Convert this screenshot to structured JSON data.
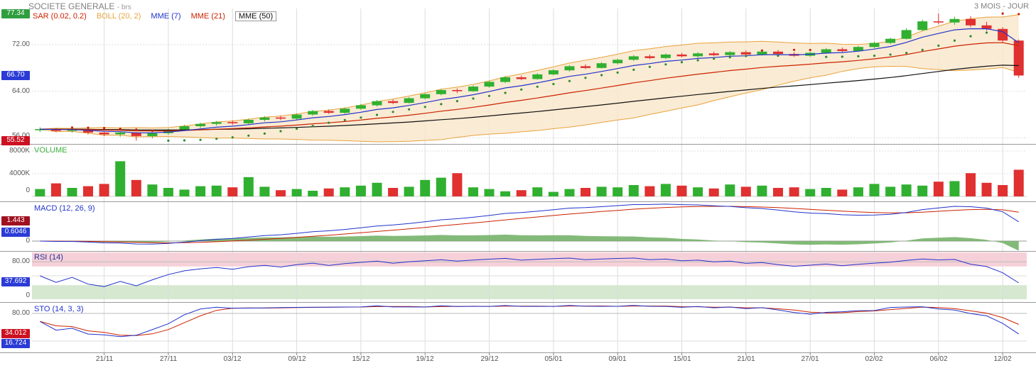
{
  "header": {
    "title": "SOCIETE GENERALE",
    "suffix": "- brs",
    "period": "3 MOIS - JOUR"
  },
  "legend": [
    {
      "label": "SAR (0.02, 0.2)",
      "color": "#cc2200"
    },
    {
      "label": "BOLL (20, 2)",
      "color": "#e8a33d"
    },
    {
      "label": "MME (7)",
      "color": "#2233cc"
    },
    {
      "label": "MME (21)",
      "color": "#cc2200"
    },
    {
      "label": "MME (50)",
      "color": "#111111",
      "boxed": true
    }
  ],
  "price_axis": {
    "high_badge": {
      "text": "77.34",
      "bg": "#2f9e3f"
    },
    "tick_72": "72.00",
    "last_badge": {
      "text": "66.70",
      "bg": "#2b3bd6"
    },
    "tick_64": "64.00",
    "tick_56": "56.00",
    "low_badge": {
      "text": "55.52",
      "bg": "#cc1122"
    }
  },
  "volume_panel": {
    "title": "VOLUME",
    "title_color": "#3eb43e",
    "tick_top": "8000K",
    "tick_mid": "4000K",
    "tick_zero": "0"
  },
  "macd_panel": {
    "title": "MACD (12, 26, 9)",
    "title_color": "#2233cc",
    "signal_badge": {
      "text": "1.443",
      "bg": "#a01020"
    },
    "macd_badge": {
      "text": "0.6046",
      "bg": "#2b3bd6"
    },
    "tick_zero": "0"
  },
  "rsi_panel": {
    "title": "RSI (14)",
    "title_color": "#223399",
    "tick_80": "80.00",
    "value_badge": {
      "text": "37.692",
      "bg": "#2b3bd6"
    },
    "tick_zero": "0"
  },
  "sto_panel": {
    "title": "STO (14, 3, 3)",
    "title_color": "#2233cc",
    "tick_80": "80.00",
    "d_badge": {
      "text": "34.012",
      "bg": "#cc1122"
    },
    "k_badge": {
      "text": "16.724",
      "bg": "#2b3bd6"
    }
  },
  "colors": {
    "up": "#30b030",
    "down": "#e03030",
    "boll_line": "#e8a33d",
    "boll_fill": "#f9e8cd",
    "mme7": "#2233cc",
    "mme21": "#cc2200",
    "mme50": "#111111",
    "sar_up": "#2e8b2e",
    "sar_down": "#cc2200",
    "macd_line": "#2233cc",
    "macd_signal": "#cc2200",
    "macd_hist": "#76b26a",
    "rsi_line": "#2233cc",
    "rsi_ob_band": "#f6d0d8",
    "rsi_os_band": "#d6e8d0",
    "sto_k": "#2233cc",
    "sto_d": "#cc2200",
    "grid": "#dddddd",
    "separator": "#9a9a9a"
  },
  "chart_data": {
    "type": "candlestick",
    "symbol": "SOCIETE GENERALE",
    "timeframe": "3 MOIS - JOUR",
    "panels": [
      "price+SAR+BOLL+MME7+MME21+MME50",
      "volume",
      "MACD(12,26,9)",
      "RSI(14)",
      "STO(14,3,3)"
    ],
    "price_ylim": [
      55.2,
      78.2
    ],
    "period_high": 77.34,
    "period_low": 55.52,
    "last_close": 66.7,
    "volume_ylim_k": [
      0,
      8000
    ],
    "indicator_values": {
      "macd_signal": 1.443,
      "macd": 0.6046,
      "rsi": 37.692,
      "sto_d": 34.012,
      "sto_k": 16.724
    },
    "rsi_overbought": 70,
    "rsi_oversold": 30,
    "x_labels": [
      "21/11",
      "27/11",
      "03/12",
      "09/12",
      "15/12",
      "19/12",
      "29/12",
      "05/01",
      "09/01",
      "15/01",
      "21/01",
      "27/01",
      "02/02",
      "06/02",
      "12/02"
    ],
    "x_label_indices": [
      4,
      8,
      12,
      16,
      20,
      24,
      28,
      32,
      36,
      40,
      44,
      48,
      52,
      56,
      60
    ],
    "candles": [
      [
        57.3,
        57.8,
        57.0,
        57.5
      ],
      [
        57.5,
        57.7,
        57.0,
        57.2
      ],
      [
        57.2,
        57.6,
        56.9,
        57.4
      ],
      [
        57.4,
        57.5,
        56.6,
        56.9
      ],
      [
        56.9,
        57.2,
        56.3,
        56.6
      ],
      [
        56.6,
        57.1,
        56.2,
        56.9
      ],
      [
        56.9,
        57.0,
        55.52,
        56.3
      ],
      [
        56.3,
        56.9,
        55.9,
        56.8
      ],
      [
        56.8,
        57.6,
        56.5,
        57.4
      ],
      [
        57.4,
        58.2,
        57.2,
        58.0
      ],
      [
        58.0,
        58.6,
        57.7,
        58.4
      ],
      [
        58.4,
        58.9,
        58.1,
        58.7
      ],
      [
        58.7,
        59.0,
        58.2,
        58.5
      ],
      [
        58.5,
        59.3,
        58.3,
        59.1
      ],
      [
        59.1,
        59.7,
        58.8,
        59.5
      ],
      [
        59.5,
        59.8,
        59.0,
        59.3
      ],
      [
        59.3,
        60.2,
        59.1,
        60.0
      ],
      [
        60.0,
        60.8,
        59.8,
        60.6
      ],
      [
        60.6,
        60.9,
        60.1,
        60.3
      ],
      [
        60.3,
        61.2,
        60.1,
        61.0
      ],
      [
        61.0,
        61.8,
        60.8,
        61.6
      ],
      [
        61.6,
        62.5,
        61.4,
        62.3
      ],
      [
        62.3,
        62.6,
        61.8,
        62.0
      ],
      [
        62.0,
        63.0,
        61.9,
        62.8
      ],
      [
        62.8,
        63.7,
        62.6,
        63.5
      ],
      [
        63.5,
        64.4,
        63.3,
        64.2
      ],
      [
        64.2,
        64.5,
        63.7,
        64.0
      ],
      [
        64.0,
        65.0,
        63.9,
        64.8
      ],
      [
        64.8,
        65.8,
        64.6,
        65.6
      ],
      [
        65.6,
        66.6,
        65.4,
        66.4
      ],
      [
        66.4,
        66.7,
        65.9,
        66.1
      ],
      [
        66.1,
        67.1,
        66.0,
        66.9
      ],
      [
        66.9,
        67.8,
        66.7,
        67.6
      ],
      [
        67.6,
        68.5,
        67.4,
        68.3
      ],
      [
        68.3,
        68.6,
        67.8,
        68.0
      ],
      [
        68.0,
        69.0,
        67.9,
        68.8
      ],
      [
        68.8,
        69.6,
        68.6,
        69.4
      ],
      [
        69.4,
        70.2,
        69.2,
        70.0
      ],
      [
        70.0,
        70.3,
        69.5,
        69.7
      ],
      [
        69.7,
        70.5,
        69.5,
        70.3
      ],
      [
        70.3,
        70.6,
        69.8,
        70.0
      ],
      [
        70.0,
        70.7,
        69.8,
        70.5
      ],
      [
        70.5,
        70.8,
        70.0,
        70.2
      ],
      [
        70.2,
        70.9,
        70.0,
        70.7
      ],
      [
        70.7,
        71.0,
        70.1,
        70.3
      ],
      [
        70.3,
        71.0,
        70.1,
        70.8
      ],
      [
        70.8,
        71.1,
        70.2,
        70.4
      ],
      [
        70.4,
        70.7,
        69.9,
        70.1
      ],
      [
        70.1,
        70.8,
        69.9,
        70.6
      ],
      [
        70.6,
        71.4,
        70.4,
        71.2
      ],
      [
        71.2,
        71.5,
        70.7,
        70.9
      ],
      [
        70.9,
        71.8,
        70.8,
        71.6
      ],
      [
        71.6,
        72.5,
        71.4,
        72.3
      ],
      [
        72.3,
        73.2,
        72.1,
        73.0
      ],
      [
        73.0,
        74.8,
        72.9,
        74.5
      ],
      [
        74.5,
        76.3,
        74.3,
        76.0
      ],
      [
        76.0,
        77.34,
        75.5,
        75.8
      ],
      [
        75.8,
        76.8,
        75.4,
        76.4
      ],
      [
        76.4,
        76.9,
        75.0,
        75.3
      ],
      [
        75.3,
        75.9,
        74.4,
        74.7
      ],
      [
        74.7,
        75.0,
        72.4,
        72.7
      ],
      [
        72.7,
        72.9,
        66.3,
        66.7
      ]
    ],
    "volumes_k": [
      1300,
      2300,
      1500,
      1800,
      2200,
      6200,
      2900,
      2100,
      1500,
      1200,
      1800,
      1900,
      1600,
      3400,
      1700,
      1100,
      1300,
      1000,
      1400,
      1600,
      1900,
      2400,
      1500,
      1700,
      2900,
      3300,
      4100,
      1600,
      1300,
      900,
      1100,
      1600,
      800,
      1300,
      1500,
      1700,
      1600,
      2000,
      1800,
      2200,
      1900,
      1600,
      1400,
      2100,
      1700,
      1900,
      1500,
      1600,
      1300,
      1500,
      1200,
      1600,
      2200,
      1700,
      2100,
      1900,
      2600,
      2700,
      4100,
      2400,
      2000,
      4700
    ]
  }
}
